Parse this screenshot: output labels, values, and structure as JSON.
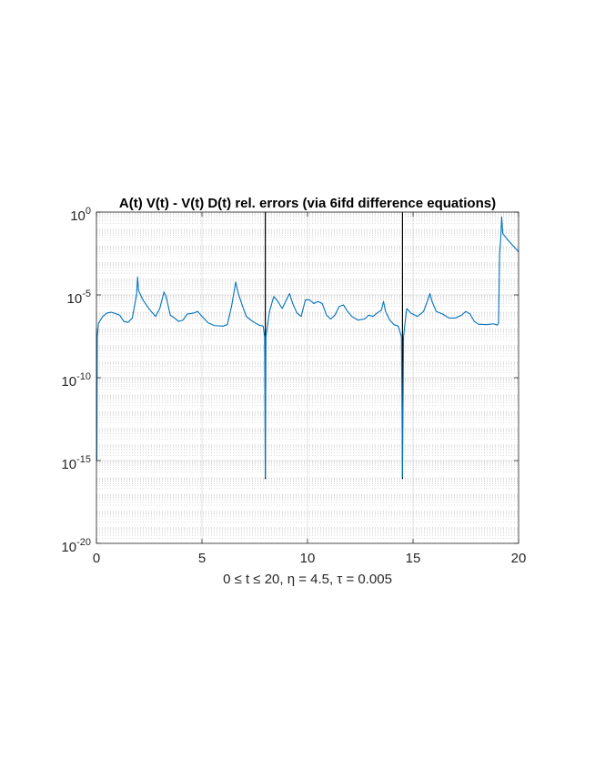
{
  "chart_data": {
    "type": "line",
    "title": "A(t) V(t) - V(t) D(t) rel. errors (via 6ifd difference equations)",
    "xlabel": "0 ≤ t ≤ 20,  η = 4.5,  τ = 0.005",
    "ylabel": "",
    "x_scale": "linear",
    "y_scale": "log",
    "xlim": [
      0,
      20
    ],
    "ylim": [
      1e-20,
      1
    ],
    "x_ticks": [
      0,
      5,
      10,
      15,
      20
    ],
    "x_tick_labels": [
      "0",
      "5",
      "10",
      "15",
      "20"
    ],
    "y_ticks": [
      1e-20,
      1e-15,
      1e-10,
      1e-05,
      1
    ],
    "y_tick_labels": [
      {
        "base": "10",
        "exp": "-20"
      },
      {
        "base": "10",
        "exp": "-15"
      },
      {
        "base": "10",
        "exp": "-10"
      },
      {
        "base": "10",
        "exp": "-5"
      },
      {
        "base": "10",
        "exp": "0"
      }
    ],
    "grid": true,
    "minor_grid": true,
    "vertical_lines": [
      {
        "x": 8.0,
        "color": "#000000"
      },
      {
        "x": 14.5,
        "color": "#000000"
      }
    ],
    "series": [
      {
        "color": "#0072bd",
        "points": [
          [
            0.0,
            1e-07
          ],
          [
            0.02,
            1e-15
          ],
          [
            0.04,
            3e-08
          ],
          [
            0.1,
            2e-07
          ],
          [
            0.3,
            5e-07
          ],
          [
            0.5,
            8e-07
          ],
          [
            0.7,
            9e-07
          ],
          [
            0.9,
            7.5e-07
          ],
          [
            1.1,
            6e-07
          ],
          [
            1.3,
            2.5e-07
          ],
          [
            1.5,
            2.2e-07
          ],
          [
            1.7,
            4e-07
          ],
          [
            1.9,
            1e-05
          ],
          [
            1.95,
            0.00012
          ],
          [
            2.0,
            1.8e-05
          ],
          [
            2.2,
            5e-06
          ],
          [
            2.5,
            1.4e-06
          ],
          [
            2.8,
            5e-07
          ],
          [
            3.0,
            1.5e-06
          ],
          [
            3.2,
            1.5e-05
          ],
          [
            3.3,
            8e-06
          ],
          [
            3.5,
            6e-07
          ],
          [
            3.7,
            4e-07
          ],
          [
            3.9,
            2.5e-07
          ],
          [
            4.1,
            3e-07
          ],
          [
            4.3,
            7e-07
          ],
          [
            4.6,
            8e-07
          ],
          [
            4.8,
            1e-06
          ],
          [
            5.0,
            5e-07
          ],
          [
            5.3,
            2e-07
          ],
          [
            5.6,
            1.4e-07
          ],
          [
            6.0,
            1.3e-07
          ],
          [
            6.2,
            1.6e-07
          ],
          [
            6.4,
            2e-06
          ],
          [
            6.6,
            6e-05
          ],
          [
            6.7,
            1.5e-05
          ],
          [
            6.9,
            2.5e-06
          ],
          [
            7.1,
            5e-07
          ],
          [
            7.4,
            2.5e-07
          ],
          [
            7.7,
            1.5e-07
          ],
          [
            7.9,
            1.3e-07
          ],
          [
            7.97,
            3e-08
          ],
          [
            8.0,
            1e-16
          ],
          [
            8.03,
            3e-08
          ],
          [
            8.2,
            1e-06
          ],
          [
            8.4,
            8e-06
          ],
          [
            8.6,
            4e-06
          ],
          [
            8.8,
            1.5e-06
          ],
          [
            9.0,
            5e-06
          ],
          [
            9.15,
            1.2e-05
          ],
          [
            9.3,
            3e-06
          ],
          [
            9.5,
            8e-07
          ],
          [
            9.7,
            5e-07
          ],
          [
            9.9,
            5e-06
          ],
          [
            10.1,
            5e-06
          ],
          [
            10.3,
            3e-06
          ],
          [
            10.5,
            4e-06
          ],
          [
            10.7,
            3e-06
          ],
          [
            10.9,
            6e-07
          ],
          [
            11.1,
            3.5e-07
          ],
          [
            11.3,
            6e-07
          ],
          [
            11.5,
            2e-06
          ],
          [
            11.7,
            2.5e-06
          ],
          [
            11.9,
            1e-06
          ],
          [
            12.1,
            5e-07
          ],
          [
            12.4,
            3e-07
          ],
          [
            12.7,
            3.5e-07
          ],
          [
            12.9,
            6e-07
          ],
          [
            13.1,
            5e-07
          ],
          [
            13.3,
            8e-07
          ],
          [
            13.5,
            1.2e-06
          ],
          [
            13.6,
            4e-06
          ],
          [
            13.7,
            1e-06
          ],
          [
            13.9,
            3e-07
          ],
          [
            14.1,
            1.6e-07
          ],
          [
            14.3,
            1.3e-07
          ],
          [
            14.45,
            3e-08
          ],
          [
            14.5,
            1e-16
          ],
          [
            14.55,
            3e-08
          ],
          [
            14.7,
            1.5e-06
          ],
          [
            14.9,
            8e-07
          ],
          [
            15.2,
            5e-07
          ],
          [
            15.5,
            1e-06
          ],
          [
            15.7,
            5e-06
          ],
          [
            15.8,
            1.2e-05
          ],
          [
            15.9,
            4e-06
          ],
          [
            16.1,
            1e-06
          ],
          [
            16.4,
            7e-07
          ],
          [
            16.7,
            4e-07
          ],
          [
            17.0,
            4e-07
          ],
          [
            17.3,
            6e-07
          ],
          [
            17.5,
            1e-06
          ],
          [
            17.7,
            7e-07
          ],
          [
            17.9,
            2.5e-07
          ],
          [
            18.1,
            1.7e-07
          ],
          [
            18.5,
            1.6e-07
          ],
          [
            18.8,
            1.8e-07
          ],
          [
            19.0,
            1.5e-07
          ],
          [
            19.05,
            2e-07
          ],
          [
            19.1,
            0.003
          ],
          [
            19.15,
            0.02
          ],
          [
            19.2,
            0.5
          ],
          [
            19.25,
            0.05
          ],
          [
            19.5,
            0.02
          ],
          [
            20.0,
            0.004
          ]
        ]
      }
    ]
  }
}
